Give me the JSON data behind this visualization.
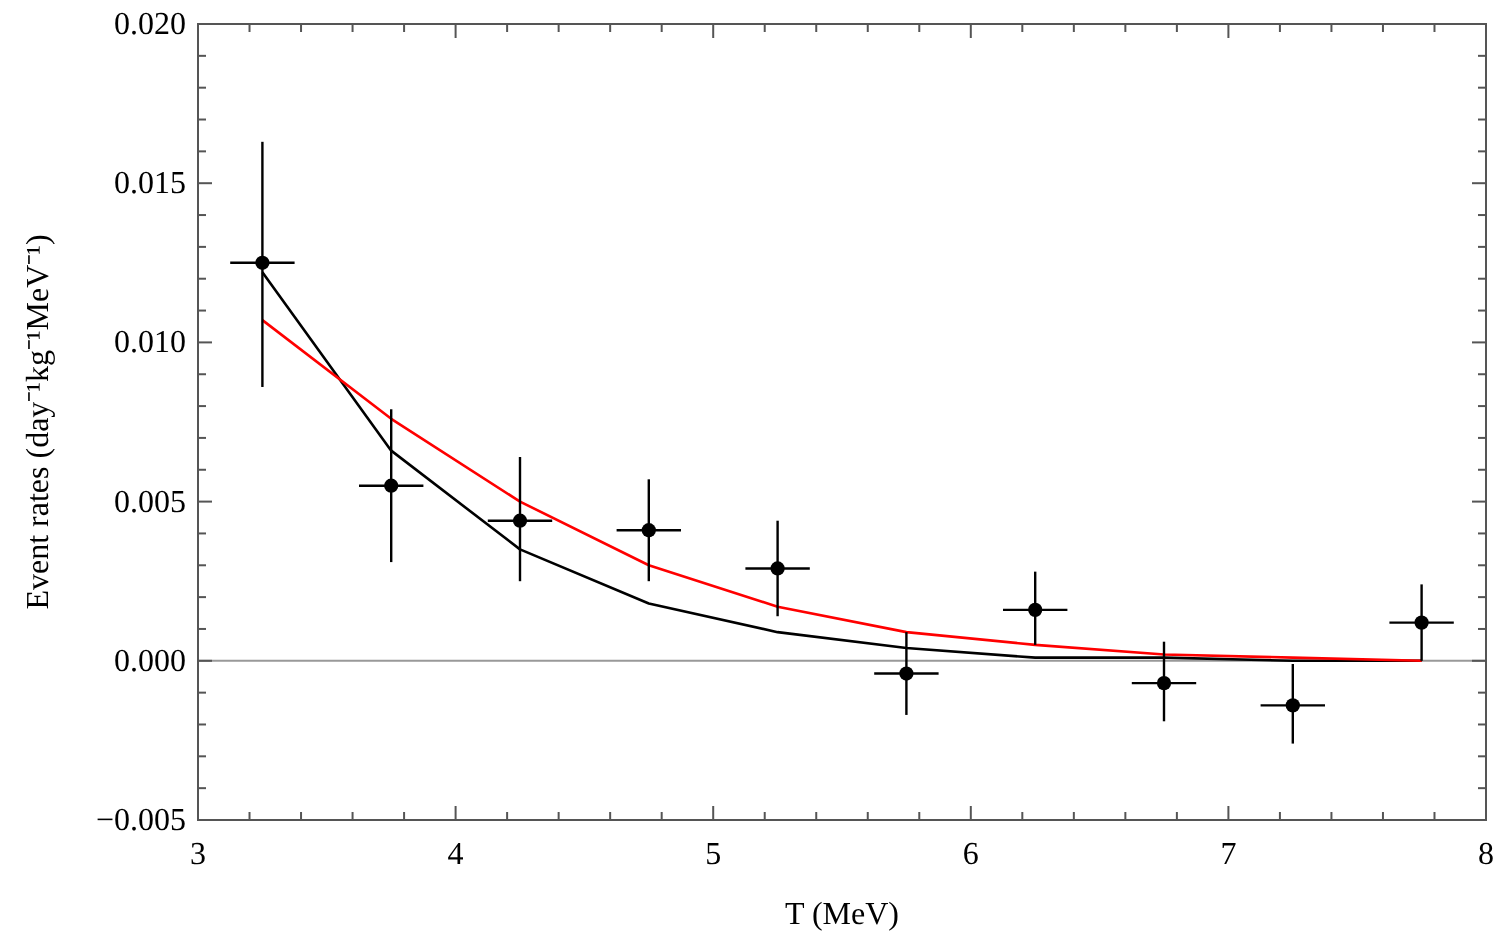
{
  "chart_data": {
    "type": "scatter",
    "xlabel": "T (MeV)",
    "ylabel": "Event rates (day⁻¹kg⁻¹MeV⁻¹)",
    "x": [
      3.25,
      3.75,
      4.25,
      4.75,
      5.25,
      5.75,
      6.25,
      6.75,
      7.25,
      7.75
    ],
    "xlim": [
      3,
      8
    ],
    "ylim": [
      -0.005,
      0.02
    ],
    "xticks": [
      3,
      {
        "value": 3.2,
        "label": null
      },
      {
        "value": 3.4,
        "label": null
      },
      {
        "value": 3.6,
        "label": null
      },
      {
        "value": 3.8,
        "label": null
      },
      4,
      {
        "value": 4.2,
        "label": null
      },
      {
        "value": 4.4,
        "label": null
      },
      {
        "value": 4.6,
        "label": null
      },
      {
        "value": 4.8,
        "label": null
      },
      5,
      {
        "value": 5.2,
        "label": null
      },
      {
        "value": 5.4,
        "label": null
      },
      {
        "value": 5.6,
        "label": null
      },
      {
        "value": 5.8,
        "label": null
      },
      6,
      {
        "value": 6.2,
        "label": null
      },
      {
        "value": 6.4,
        "label": null
      },
      {
        "value": 6.6,
        "label": null
      },
      {
        "value": 6.8,
        "label": null
      },
      7,
      {
        "value": 7.2,
        "label": null
      },
      {
        "value": 7.4,
        "label": null
      },
      {
        "value": 7.6,
        "label": null
      },
      {
        "value": 7.8,
        "label": null
      },
      8
    ],
    "yticks": [
      {
        "value": -0.005,
        "label": "−0.005"
      },
      {
        "value": -0.004,
        "label": null
      },
      {
        "value": -0.003,
        "label": null
      },
      {
        "value": -0.002,
        "label": null
      },
      {
        "value": -0.001,
        "label": null
      },
      {
        "value": 0,
        "label": "0.000"
      },
      {
        "value": 0.001,
        "label": null
      },
      {
        "value": 0.002,
        "label": null
      },
      {
        "value": 0.003,
        "label": null
      },
      {
        "value": 0.004,
        "label": null
      },
      {
        "value": 0.005,
        "label": "0.005"
      },
      {
        "value": 0.006,
        "label": null
      },
      {
        "value": 0.007,
        "label": null
      },
      {
        "value": 0.008,
        "label": null
      },
      {
        "value": 0.009,
        "label": null
      },
      {
        "value": 0.01,
        "label": "0.010"
      },
      {
        "value": 0.011,
        "label": null
      },
      {
        "value": 0.012,
        "label": null
      },
      {
        "value": 0.013,
        "label": null
      },
      {
        "value": 0.014,
        "label": null
      },
      {
        "value": 0.015,
        "label": "0.015"
      },
      {
        "value": 0.016,
        "label": null
      },
      {
        "value": 0.017,
        "label": null
      },
      {
        "value": 0.018,
        "label": null
      },
      {
        "value": 0.019,
        "label": null
      },
      {
        "value": 0.02,
        "label": "0.020"
      }
    ],
    "grid": false,
    "ref_lines": [
      {
        "axis": "y",
        "value": 0,
        "color": "#999999"
      }
    ],
    "series": [
      {
        "type": "line",
        "color": "#000000",
        "marker": "none",
        "values": [
          0.0122,
          0.0066,
          0.0035,
          0.0018,
          0.0009,
          0.0004,
          0.0001,
          0.0001,
          0,
          0
        ]
      },
      {
        "type": "line",
        "color": "#ff0000",
        "marker": "none",
        "values": [
          0.0107,
          0.0076,
          0.005,
          0.003,
          0.0017,
          0.0009,
          0.0005,
          0.0002,
          0.0001,
          0
        ]
      },
      {
        "color": "#000000",
        "marker": "circle",
        "values": [
          0.0125,
          0.0055,
          0.0044,
          0.0041,
          0.0029,
          -0.0004,
          0.0016,
          -0.0007,
          -0.0014,
          0.0012
        ],
        "errors": [
          [
            0.0086,
            0.0163
          ],
          [
            0.0031,
            0.0079
          ],
          [
            0.0025,
            0.0064
          ],
          [
            0.0025,
            0.0057
          ],
          [
            0.0014,
            0.0044
          ],
          [
            -0.0017,
            0.0009
          ],
          [
            0.0005,
            0.0028
          ],
          [
            -0.0019,
            0.0006
          ],
          [
            -0.0026,
            -0.0001
          ],
          [
            0,
            0.0024
          ]
        ],
        "xerrors": [
          0.125,
          0.125,
          0.125,
          0.125,
          0.125,
          0.125,
          0.125,
          0.125,
          0.125,
          0.125
        ]
      }
    ]
  }
}
